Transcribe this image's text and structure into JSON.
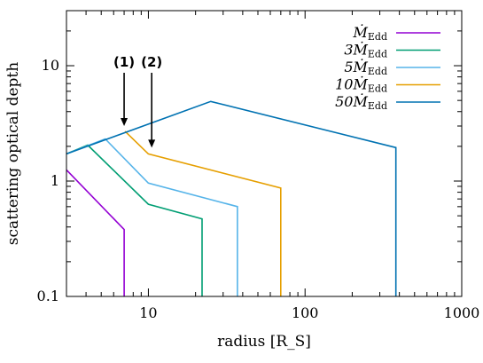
{
  "chart_data": {
    "type": "line",
    "xlabel": "radius [R_S]",
    "ylabel": "scattering optical depth",
    "x_scale": "log",
    "y_scale": "log",
    "xlim": [
      3,
      1000
    ],
    "ylim": [
      0.1,
      30
    ],
    "x_ticks": [
      {
        "value": 10,
        "label": "10"
      },
      {
        "value": 100,
        "label": "100"
      },
      {
        "value": 1000,
        "label": "1000"
      }
    ],
    "y_ticks": [
      {
        "value": 0.1,
        "label": "0.1"
      },
      {
        "value": 1,
        "label": "1"
      },
      {
        "value": 10,
        "label": "10"
      }
    ],
    "legend_position": "top-right",
    "series": [
      {
        "name": "Ṁ_Edd",
        "legend_main": "Ṁ",
        "legend_sub": "Edd",
        "color": "#9400d3",
        "points": [
          [
            3,
            1.25
          ],
          [
            7,
            0.38
          ],
          [
            7,
            0.1
          ]
        ]
      },
      {
        "name": "3Ṁ_Edd",
        "legend_main": "3Ṁ",
        "legend_sub": "Edd",
        "color": "#009e73",
        "points": [
          [
            3,
            1.72
          ],
          [
            4.1,
            2.05
          ],
          [
            10,
            0.63
          ],
          [
            22,
            0.47
          ],
          [
            22,
            0.1
          ]
        ]
      },
      {
        "name": "5Ṁ_Edd",
        "legend_main": "5Ṁ",
        "legend_sub": "Edd",
        "color": "#56b4e9",
        "points": [
          [
            3,
            1.72
          ],
          [
            5.3,
            2.32
          ],
          [
            10,
            0.96
          ],
          [
            37,
            0.6
          ],
          [
            37,
            0.1
          ]
        ]
      },
      {
        "name": "10Ṁ_Edd",
        "legend_main": "10Ṁ",
        "legend_sub": "Edd",
        "color": "#e69f00",
        "points": [
          [
            7.1,
            2.7
          ],
          [
            10,
            1.72
          ],
          [
            70,
            0.87
          ],
          [
            70,
            0.1
          ]
        ]
      },
      {
        "name": "50Ṁ_Edd",
        "legend_main": "50Ṁ",
        "legend_sub": "Edd",
        "color": "#0072b2",
        "points": [
          [
            3,
            1.72
          ],
          [
            25,
            4.9
          ],
          [
            380,
            1.95
          ],
          [
            380,
            0.1
          ]
        ]
      }
    ],
    "annotations": [
      {
        "label": "(1)",
        "x": 7,
        "y": 2.7
      },
      {
        "label": "(2)",
        "x": 10.5,
        "y": 1.75
      }
    ]
  }
}
